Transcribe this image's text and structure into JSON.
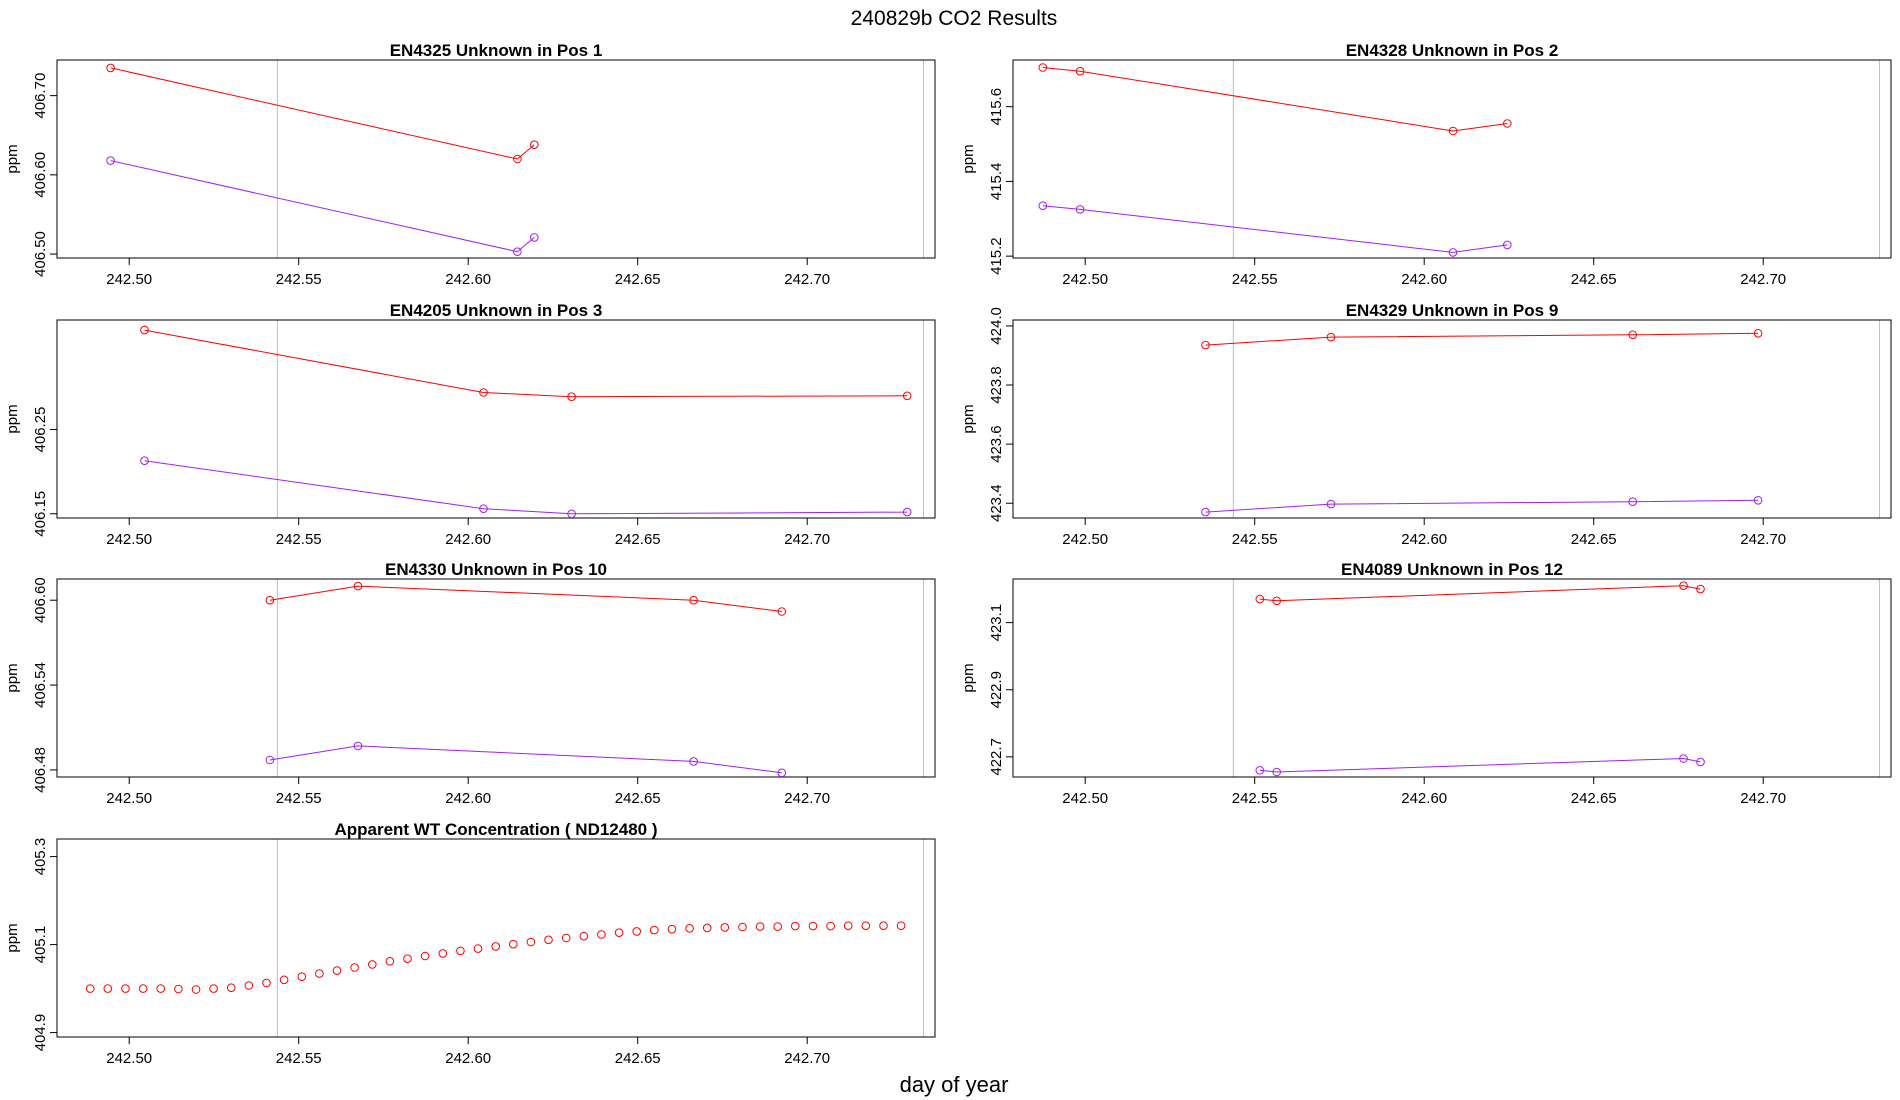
{
  "title": "240829b  CO2 Results",
  "xlabel": "day of year",
  "colors": {
    "red": "#ff0000",
    "purple": "#a020f0",
    "vline": "#bebebe",
    "frame": "#000000"
  },
  "chart_data": [
    {
      "type": "line",
      "title": "EN4325    Unknown in Pos 1",
      "ylabel": "ppm",
      "xlim": [
        242.4787,
        242.7377
      ],
      "ylim": [
        406.495,
        406.745
      ],
      "x_ticks": [
        242.5,
        242.55,
        242.6,
        242.65,
        242.7
      ],
      "x_tick_labels": [
        "242.50",
        "242.55",
        "242.60",
        "242.65",
        "242.70"
      ],
      "y_ticks": [
        406.5,
        406.6,
        406.7
      ],
      "y_tick_labels": [
        "406.50",
        "406.60",
        "406.70"
      ],
      "vlines": [
        242.5437,
        242.7343
      ],
      "series": [
        {
          "name": "red",
          "color": "#ff0000",
          "x": [
            242.4945,
            242.6145,
            242.6195
          ],
          "y": [
            406.735,
            406.62,
            406.638
          ]
        },
        {
          "name": "purple",
          "color": "#a020f0",
          "x": [
            242.4945,
            242.6145,
            242.6195
          ],
          "y": [
            406.618,
            406.503,
            406.521
          ]
        }
      ]
    },
    {
      "type": "line",
      "title": "EN4328    Unknown in Pos 2",
      "ylabel": "ppm",
      "xlim": [
        242.4787,
        242.7377
      ],
      "ylim": [
        415.195,
        415.725
      ],
      "x_ticks": [
        242.5,
        242.55,
        242.6,
        242.65,
        242.7
      ],
      "x_tick_labels": [
        "242.50",
        "242.55",
        "242.60",
        "242.65",
        "242.70"
      ],
      "y_ticks": [
        415.2,
        415.4,
        415.6
      ],
      "y_tick_labels": [
        "415.2",
        "415.4",
        "415.6"
      ],
      "vlines": [
        242.5437,
        242.7343
      ],
      "series": [
        {
          "name": "red",
          "color": "#ff0000",
          "x": [
            242.4875,
            242.4985,
            242.6085,
            242.6245
          ],
          "y": [
            415.705,
            415.695,
            415.535,
            415.555
          ]
        },
        {
          "name": "purple",
          "color": "#a020f0",
          "x": [
            242.4875,
            242.4985,
            242.6085,
            242.6245
          ],
          "y": [
            415.335,
            415.325,
            415.21,
            415.23
          ]
        }
      ]
    },
    {
      "type": "line",
      "title": "EN4205    Unknown in Pos 3",
      "ylabel": "ppm",
      "xlim": [
        242.4787,
        242.7377
      ],
      "ylim": [
        406.145,
        406.38
      ],
      "x_ticks": [
        242.5,
        242.55,
        242.6,
        242.65,
        242.7
      ],
      "x_tick_labels": [
        "242.50",
        "242.55",
        "242.60",
        "242.65",
        "242.70"
      ],
      "y_ticks": [
        406.15,
        406.25
      ],
      "y_tick_labels": [
        "406.15",
        "406.25"
      ],
      "vlines": [
        242.5437,
        242.7343
      ],
      "series": [
        {
          "name": "red",
          "color": "#ff0000",
          "x": [
            242.5045,
            242.6045,
            242.6305,
            242.7295
          ],
          "y": [
            406.368,
            406.294,
            406.289,
            406.29
          ]
        },
        {
          "name": "purple",
          "color": "#a020f0",
          "x": [
            242.5045,
            242.6045,
            242.6305,
            242.7295
          ],
          "y": [
            406.213,
            406.156,
            406.15,
            406.152
          ]
        }
      ]
    },
    {
      "type": "line",
      "title": "EN4329    Unknown in Pos 9",
      "ylabel": "ppm",
      "xlim": [
        242.4787,
        242.7377
      ],
      "ylim": [
        423.35,
        424.02
      ],
      "x_ticks": [
        242.5,
        242.55,
        242.6,
        242.65,
        242.7
      ],
      "x_tick_labels": [
        "242.50",
        "242.55",
        "242.60",
        "242.65",
        "242.70"
      ],
      "y_ticks": [
        423.4,
        423.6,
        423.8,
        424.0
      ],
      "y_tick_labels": [
        "423.4",
        "423.6",
        "423.8",
        "424.0"
      ],
      "vlines": [
        242.5437,
        242.7343
      ],
      "series": [
        {
          "name": "red",
          "color": "#ff0000",
          "x": [
            242.5355,
            242.5725,
            242.6615,
            242.6985
          ],
          "y": [
            423.935,
            423.962,
            423.97,
            423.975
          ]
        },
        {
          "name": "purple",
          "color": "#a020f0",
          "x": [
            242.5355,
            242.5725,
            242.6615,
            242.6985
          ],
          "y": [
            423.37,
            423.397,
            423.405,
            423.41
          ]
        }
      ]
    },
    {
      "type": "line",
      "title": "EN4330    Unknown in Pos 10",
      "ylabel": "ppm",
      "xlim": [
        242.4787,
        242.7377
      ],
      "ylim": [
        406.475,
        406.615
      ],
      "x_ticks": [
        242.5,
        242.55,
        242.6,
        242.65,
        242.7
      ],
      "x_tick_labels": [
        "242.50",
        "242.55",
        "242.60",
        "242.65",
        "242.70"
      ],
      "y_ticks": [
        406.48,
        406.54,
        406.6
      ],
      "y_tick_labels": [
        "406.48",
        "406.54",
        "406.60"
      ],
      "vlines": [
        242.5437,
        242.7343
      ],
      "series": [
        {
          "name": "red",
          "color": "#ff0000",
          "x": [
            242.5415,
            242.5675,
            242.6665,
            242.6925
          ],
          "y": [
            406.6,
            406.61,
            406.6,
            406.592
          ]
        },
        {
          "name": "purple",
          "color": "#a020f0",
          "x": [
            242.5415,
            242.5675,
            242.6665,
            242.6925
          ],
          "y": [
            406.487,
            406.497,
            406.486,
            406.478
          ]
        }
      ]
    },
    {
      "type": "line",
      "title": "EN4089    Unknown in Pos 12",
      "ylabel": "ppm",
      "xlim": [
        242.4787,
        242.7377
      ],
      "ylim": [
        422.64,
        423.23
      ],
      "x_ticks": [
        242.5,
        242.55,
        242.6,
        242.65,
        242.7
      ],
      "x_tick_labels": [
        "242.50",
        "242.55",
        "242.60",
        "242.65",
        "242.70"
      ],
      "y_ticks": [
        422.7,
        422.9,
        423.1
      ],
      "y_tick_labels": [
        "422.7",
        "422.9",
        "423.1"
      ],
      "vlines": [
        242.5437,
        242.7343
      ],
      "series": [
        {
          "name": "red",
          "color": "#ff0000",
          "x": [
            242.5515,
            242.5565,
            242.6765,
            242.6815
          ],
          "y": [
            423.17,
            423.165,
            423.21,
            423.2
          ]
        },
        {
          "name": "purple",
          "color": "#a020f0",
          "x": [
            242.5515,
            242.5565,
            242.6765,
            242.6815
          ],
          "y": [
            422.66,
            422.655,
            422.695,
            422.685
          ]
        }
      ]
    },
    {
      "type": "scatter",
      "title": "Apparent WT Concentration ( ND12480 )",
      "ylabel": "ppm",
      "xlim": [
        242.4787,
        242.7377
      ],
      "ylim": [
        404.89,
        405.34
      ],
      "x_ticks": [
        242.5,
        242.55,
        242.6,
        242.65,
        242.7
      ],
      "x_tick_labels": [
        "242.50",
        "242.55",
        "242.60",
        "242.65",
        "242.70"
      ],
      "y_ticks": [
        404.9,
        405.1,
        405.3
      ],
      "y_tick_labels": [
        "404.9",
        "405.1",
        "405.3"
      ],
      "vlines": [
        242.5437,
        242.7343
      ],
      "series": [
        {
          "name": "red",
          "color": "#ff0000",
          "x": [
            242.4885,
            242.4937,
            242.4989,
            242.5041,
            242.5093,
            242.5145,
            242.5197,
            242.5249,
            242.5301,
            242.5353,
            242.5405,
            242.5457,
            242.5509,
            242.5561,
            242.5613,
            242.5665,
            242.5717,
            242.5769,
            242.5821,
            242.5873,
            242.5925,
            242.5977,
            242.6029,
            242.6081,
            242.6133,
            242.6185,
            242.6237,
            242.6289,
            242.6341,
            242.6393,
            242.6445,
            242.6497,
            242.6549,
            242.6601,
            242.6653,
            242.6705,
            242.6757,
            242.6809,
            242.6861,
            242.6913,
            242.6965,
            242.7017,
            242.7069,
            242.7121,
            242.7173,
            242.7225,
            242.7277
          ],
          "y": [
            405.0,
            405.0,
            405.0,
            405.0,
            405.0,
            404.999,
            404.998,
            405.0,
            405.002,
            405.007,
            405.013,
            405.02,
            405.027,
            405.034,
            405.041,
            405.048,
            405.055,
            405.062,
            405.068,
            405.074,
            405.08,
            405.086,
            405.091,
            405.096,
            405.101,
            405.106,
            405.111,
            405.115,
            405.119,
            405.123,
            405.127,
            405.13,
            405.133,
            405.135,
            405.137,
            405.138,
            405.139,
            405.14,
            405.141,
            405.141,
            405.142,
            405.142,
            405.142,
            405.143,
            405.143,
            405.143,
            405.143
          ]
        }
      ]
    }
  ]
}
